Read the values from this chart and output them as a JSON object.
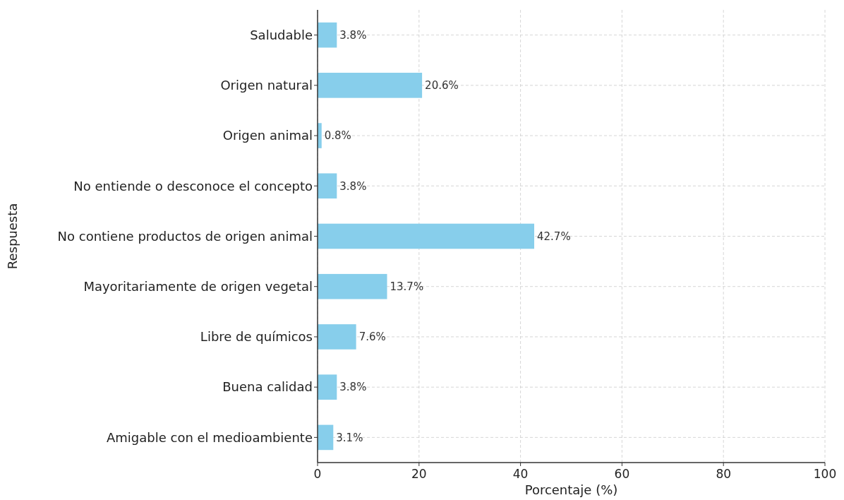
{
  "chart_data": {
    "type": "bar",
    "orientation": "horizontal",
    "xlabel": "Porcentaje (%)",
    "ylabel": "Respuesta",
    "categories": [
      "Saludable",
      "Origen natural",
      "Origen animal",
      "No entiende o desconoce el concepto",
      "No contiene productos de origen animal",
      "Mayoritariamente de origen vegetal",
      "Libre de químicos",
      "Buena calidad",
      "Amigable con el medioambiente"
    ],
    "values": [
      3.8,
      20.6,
      0.8,
      3.8,
      42.7,
      13.7,
      7.6,
      3.8,
      3.1
    ],
    "value_labels": [
      "3.8%",
      "20.6%",
      "0.8%",
      "3.8%",
      "42.7%",
      "13.7%",
      "7.6%",
      "3.8%",
      "3.1%"
    ],
    "color": "#87ceeb",
    "xlim": [
      0,
      100
    ],
    "xticks": [
      0,
      20,
      40,
      60,
      80,
      100
    ],
    "grid": true,
    "line_style": "dashed"
  }
}
